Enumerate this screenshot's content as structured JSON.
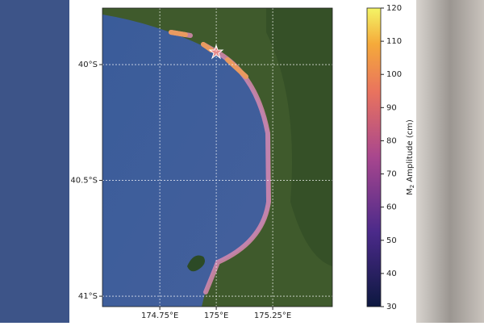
{
  "map": {
    "lat_ticks": [
      {
        "value": -40,
        "label": "40°S"
      },
      {
        "value": -40.5,
        "label": "40.5°S"
      },
      {
        "value": -41,
        "label": "41°S"
      }
    ],
    "lon_ticks": [
      {
        "value": 174.75,
        "label": "174.75°E"
      },
      {
        "value": 175,
        "label": "175°E"
      },
      {
        "value": 175.25,
        "label": "175.25°E"
      }
    ],
    "lat_range": [
      -39.756,
      -41.045
    ],
    "lon_range": [
      174.496,
      175.514
    ]
  },
  "colorbar": {
    "label_prefix": "M",
    "label_sub": "2",
    "label_suffix": " Amplitude (cm)",
    "clim": [
      30,
      120
    ],
    "ticks": [
      30,
      40,
      50,
      60,
      70,
      80,
      90,
      100,
      110,
      120
    ]
  }
}
